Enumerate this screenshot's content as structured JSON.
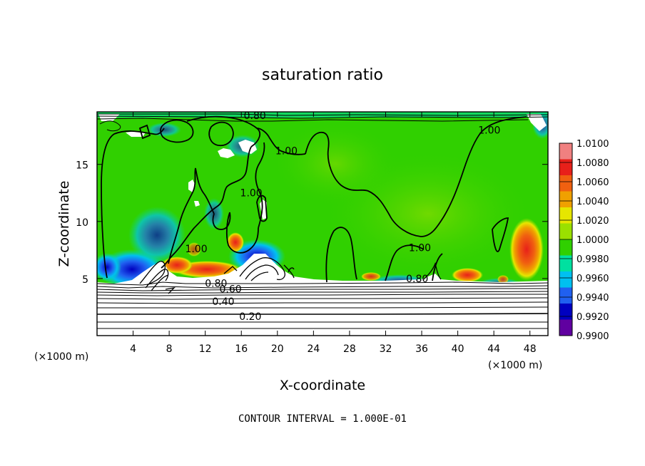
{
  "chart_data": {
    "type": "heatmap",
    "title": "saturation ratio",
    "xlabel": "X-coordinate",
    "ylabel": "Z-coordinate",
    "x_unit_label_left": "(×1000 m)",
    "x_unit_label_right": "(×1000 m)",
    "xlim": [
      0,
      50
    ],
    "ylim": [
      0,
      19.6
    ],
    "x_ticks": [
      4,
      8,
      12,
      16,
      20,
      24,
      28,
      32,
      36,
      40,
      44,
      48
    ],
    "y_ticks": [
      5,
      10,
      15
    ],
    "footnote": "CONTOUR INTERVAL = 1.000E-01",
    "colorbar": {
      "levels": [
        "1.0100",
        "1.0080",
        "1.0060",
        "1.0040",
        "1.0020",
        "1.0000",
        "0.9980",
        "0.9960",
        "0.9940",
        "0.9920",
        "0.9900"
      ],
      "colors": [
        "#f08080",
        "#e8201a",
        "#f06010",
        "#f0a000",
        "#e6e600",
        "#9ae000",
        "#30d000",
        "#00e0a0",
        "#00c0f0",
        "#2060f0",
        "#0000c0",
        "#6000a0"
      ]
    },
    "contour_labels": [
      {
        "text": "0.80",
        "x": 17.5,
        "z": 19.3
      },
      {
        "text": "1.00",
        "x": 21.0,
        "z": 16.2
      },
      {
        "text": "1.00",
        "x": 43.5,
        "z": 18.0
      },
      {
        "text": "1.00",
        "x": 17.1,
        "z": 12.5
      },
      {
        "text": "1.00",
        "x": 11.0,
        "z": 7.6
      },
      {
        "text": "1.00",
        "x": 35.8,
        "z": 7.7
      },
      {
        "text": "0.80",
        "x": 35.5,
        "z": 5.0
      },
      {
        "text": "0.80",
        "x": 13.2,
        "z": 4.6
      },
      {
        "text": "0.60",
        "x": 14.8,
        "z": 4.1
      },
      {
        "text": "0.40",
        "x": 14.0,
        "z": 3.0
      },
      {
        "text": "0.20",
        "x": 17.0,
        "z": 1.7
      }
    ]
  }
}
